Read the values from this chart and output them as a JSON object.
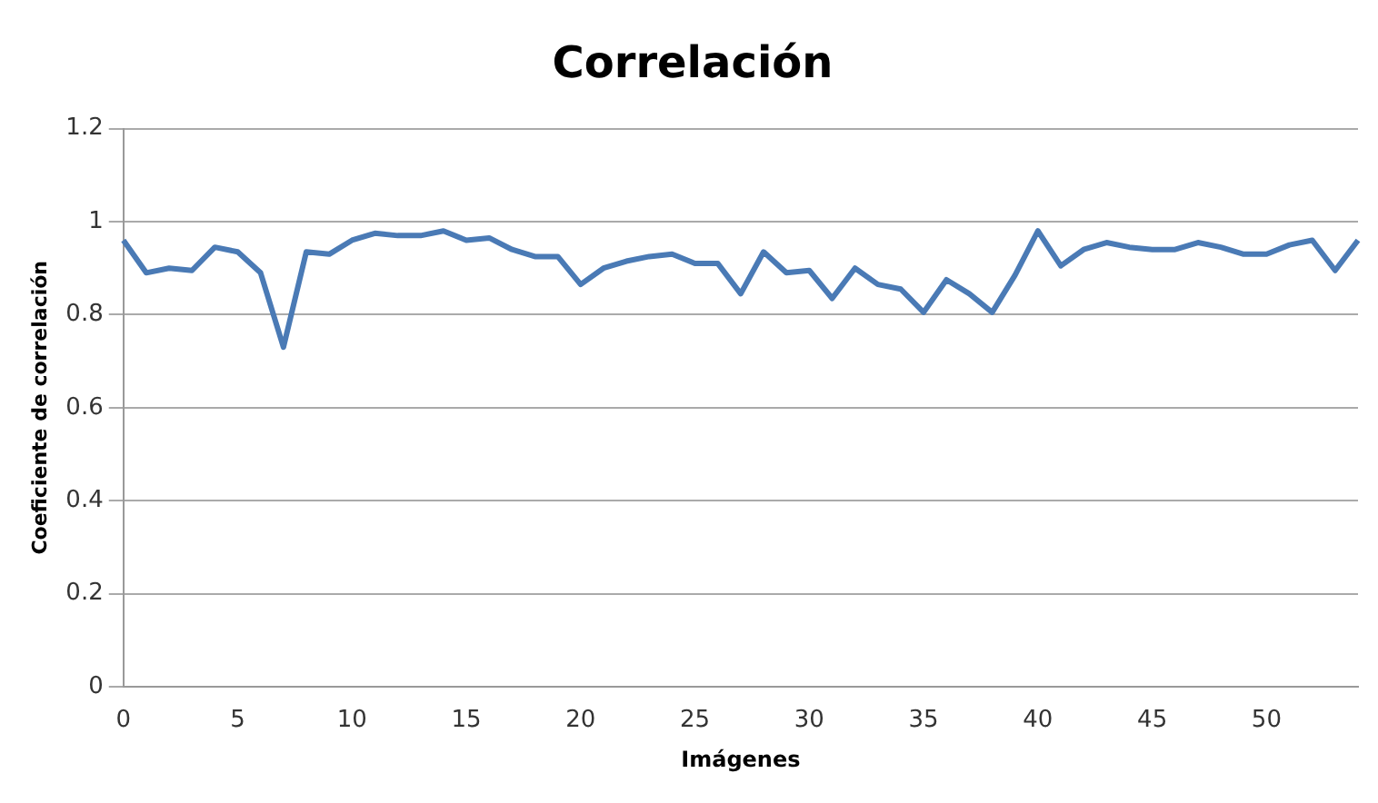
{
  "chart_data": {
    "type": "line",
    "title": "Correlación",
    "xlabel": "Imágenes",
    "ylabel": "Coeficiente de correlación",
    "categories": [
      "0",
      null,
      null,
      null,
      null,
      "5",
      null,
      null,
      null,
      null,
      "10",
      null,
      null,
      null,
      null,
      "15",
      null,
      null,
      null,
      null,
      "20",
      null,
      null,
      null,
      null,
      "25",
      null,
      null,
      null,
      null,
      "30",
      null,
      null,
      null,
      null,
      "35",
      null,
      null,
      null,
      null,
      "40",
      null,
      null,
      null,
      null,
      "45",
      null,
      null,
      null,
      null,
      "50",
      null,
      null,
      null,
      null
    ],
    "series": [
      {
        "color": "#4a7ab5",
        "values": [
          0.96,
          0.89,
          0.9,
          0.895,
          0.945,
          0.935,
          0.89,
          0.73,
          0.935,
          0.93,
          0.96,
          0.975,
          0.97,
          0.97,
          0.98,
          0.96,
          0.965,
          0.94,
          0.925,
          0.925,
          0.865,
          0.9,
          0.915,
          0.925,
          0.93,
          0.91,
          0.91,
          0.845,
          0.935,
          0.89,
          0.895,
          0.835,
          0.9,
          0.865,
          0.855,
          0.805,
          0.875,
          0.845,
          0.805,
          0.885,
          0.98,
          0.905,
          0.94,
          0.955,
          0.945,
          0.94,
          0.94,
          0.955,
          0.945,
          0.93,
          0.93,
          0.95,
          0.96,
          0.895,
          0.96
        ]
      }
    ],
    "ylim": [
      0,
      1.2
    ],
    "yticks": [
      0,
      0.2,
      0.4,
      0.6,
      0.8,
      1,
      1.2
    ],
    "grid": "y",
    "legend": false,
    "marker": "none",
    "line_style": "solid"
  }
}
